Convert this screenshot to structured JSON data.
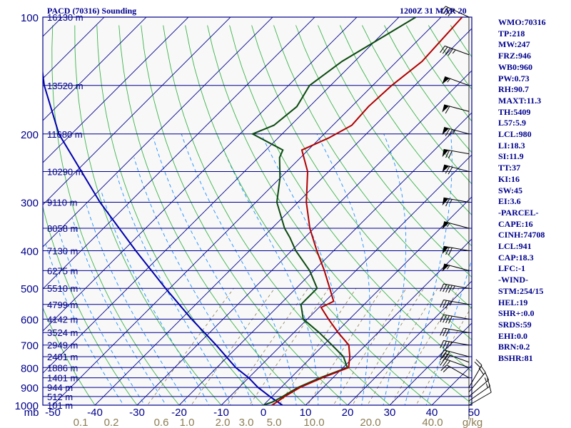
{
  "header": {
    "station": "PACD (70316) Sounding",
    "valid_time": "1200Z 31 MAR 20"
  },
  "stats": [
    "WMO:70316",
    "TP:218",
    "MW:247",
    "FRZ:946",
    "WB0:960",
    "PW:0.73",
    "RH:90.7",
    "MAXT:11.3",
    "TH:5409",
    "L57:5.9",
    "LCL:980",
    "LI:18.3",
    "SI:11.9",
    "TT:37",
    "KI:16",
    "SW:45",
    "EI:3.6",
    "-PARCEL-",
    "CAPE:16",
    "CINH:74708",
    "LCL:941",
    "CAP:18.3",
    "LFC:-1",
    "-WIND-",
    "STM:254/15",
    "HEL:19",
    "SHR+:0.0",
    "SRDS:59",
    "EHI:0.0",
    "BRN:0.2",
    "BSHR:81"
  ],
  "colors": {
    "background": "#f8f8f8",
    "isobar": "#00008b",
    "isotherm": "#00008b",
    "dry_adiabat": "#3cb44b",
    "moist_adiabat": "#1e90ff",
    "mixing_ratio": "#8b7d55",
    "temperature": "#b00000",
    "dewpoint": "#0b4a10",
    "parcel": "#0000b0",
    "wind_barbs": "#000000",
    "label_text": "#00008b",
    "mixing_label": "#8b7d55"
  },
  "chart_data": {
    "type": "skew-t log-p sounding",
    "pressure_axis_unit": "mb",
    "temperature_axis_unit": "°C",
    "mixing_ratio_unit": "g/kg",
    "pressure_range": [
      1000,
      100
    ],
    "temperature_range": [
      -50,
      50
    ],
    "pressure_labels": [
      100,
      200,
      300,
      400,
      500,
      600,
      700,
      800,
      900,
      1000
    ],
    "height_labels": [
      {
        "p": 100,
        "label": "16130 m"
      },
      {
        "p": 150,
        "label": "13520 m"
      },
      {
        "p": 200,
        "label": "11680 m"
      },
      {
        "p": 250,
        "label": "10290 m"
      },
      {
        "p": 300,
        "label": "9110 m"
      },
      {
        "p": 350,
        "label": "8058 m"
      },
      {
        "p": 400,
        "label": "7130 m"
      },
      {
        "p": 450,
        "label": "6275 m"
      },
      {
        "p": 500,
        "label": "5510 m"
      },
      {
        "p": 550,
        "label": "4799 m"
      },
      {
        "p": 600,
        "label": "4142 m"
      },
      {
        "p": 650,
        "label": "3524 m"
      },
      {
        "p": 700,
        "label": "2949 m"
      },
      {
        "p": 750,
        "label": "2401 m"
      },
      {
        "p": 800,
        "label": "1886 m"
      },
      {
        "p": 850,
        "label": "1401 m"
      },
      {
        "p": 900,
        "label": "944 m"
      },
      {
        "p": 950,
        "label": "512 m"
      },
      {
        "p": 1000,
        "label": "101 m"
      }
    ],
    "temperature_ticks": [
      "-50",
      "-40",
      "-30",
      "-20",
      "-10",
      "0",
      "10",
      "20",
      "30",
      "40",
      "50"
    ],
    "mixing_ratio_ticks": [
      "0.1",
      "0.2",
      "0.6",
      "1.0",
      "2.0",
      "3.0",
      "5.0",
      "10.0",
      "20.0",
      "40.0"
    ],
    "x_axis_left_label": "mb",
    "x_axis_right_label": "g/kg",
    "temperature_profile": [
      {
        "p": 1000,
        "t": 2.0
      },
      {
        "p": 980,
        "t": 2.5
      },
      {
        "p": 950,
        "t": 3.0
      },
      {
        "p": 900,
        "t": 4.5
      },
      {
        "p": 850,
        "t": 7.5
      },
      {
        "p": 800,
        "t": 11.3
      },
      {
        "p": 750,
        "t": 9.0
      },
      {
        "p": 700,
        "t": 6.0
      },
      {
        "p": 650,
        "t": 0.5
      },
      {
        "p": 600,
        "t": -5.0
      },
      {
        "p": 560,
        "t": -9.5
      },
      {
        "p": 540,
        "t": -8.0
      },
      {
        "p": 500,
        "t": -12.0
      },
      {
        "p": 450,
        "t": -17.5
      },
      {
        "p": 400,
        "t": -24.0
      },
      {
        "p": 350,
        "t": -31.0
      },
      {
        "p": 300,
        "t": -38.0
      },
      {
        "p": 250,
        "t": -45.0
      },
      {
        "p": 220,
        "t": -51.5
      },
      {
        "p": 205,
        "t": -48.0
      },
      {
        "p": 190,
        "t": -45.5
      },
      {
        "p": 170,
        "t": -46.0
      },
      {
        "p": 150,
        "t": -45.5
      },
      {
        "p": 130,
        "t": -44.0
      },
      {
        "p": 100,
        "t": -45.0
      }
    ],
    "dewpoint_profile": [
      {
        "p": 1000,
        "td": 0.0
      },
      {
        "p": 980,
        "td": 1.5
      },
      {
        "p": 950,
        "td": 2.5
      },
      {
        "p": 900,
        "td": 4.0
      },
      {
        "p": 850,
        "td": 7.0
      },
      {
        "p": 800,
        "td": 11.0
      },
      {
        "p": 750,
        "td": 7.5
      },
      {
        "p": 700,
        "td": 2.0
      },
      {
        "p": 650,
        "td": -4.0
      },
      {
        "p": 600,
        "td": -11.0
      },
      {
        "p": 550,
        "td": -15.0
      },
      {
        "p": 500,
        "td": -15.0
      },
      {
        "p": 450,
        "td": -21.0
      },
      {
        "p": 400,
        "td": -29.0
      },
      {
        "p": 370,
        "td": -33.5
      },
      {
        "p": 350,
        "td": -37.0
      },
      {
        "p": 300,
        "td": -45.0
      },
      {
        "p": 260,
        "td": -50.0
      },
      {
        "p": 230,
        "td": -55.0
      },
      {
        "p": 220,
        "td": -56.0
      },
      {
        "p": 200,
        "td": -67.0
      },
      {
        "p": 190,
        "td": -64.0
      },
      {
        "p": 170,
        "td": -63.0
      },
      {
        "p": 150,
        "td": -65.0
      },
      {
        "p": 130,
        "td": -63.0
      },
      {
        "p": 100,
        "td": -56.0
      }
    ],
    "parcel_profile": [
      {
        "p": 1000,
        "t": 4.5
      },
      {
        "p": 950,
        "t": -0.5
      },
      {
        "p": 900,
        "t": -5.5
      },
      {
        "p": 850,
        "t": -10.0
      },
      {
        "p": 800,
        "t": -15.5
      },
      {
        "p": 700,
        "t": -25.5
      },
      {
        "p": 600,
        "t": -37.5
      },
      {
        "p": 500,
        "t": -51.0
      },
      {
        "p": 400,
        "t": -67.0
      },
      {
        "p": 300,
        "t": -87.0
      },
      {
        "p": 200,
        "t": -113.0
      },
      {
        "p": 150,
        "t": -128.0
      },
      {
        "p": 115,
        "t": -140.0
      }
    ],
    "wind_barbs": [
      {
        "p": 1000,
        "dir": 60,
        "spd": 10
      },
      {
        "p": 975,
        "dir": 55,
        "spd": 15
      },
      {
        "p": 950,
        "dir": 50,
        "spd": 15
      },
      {
        "p": 925,
        "dir": 40,
        "spd": 20
      },
      {
        "p": 900,
        "dir": 30,
        "spd": 20
      },
      {
        "p": 850,
        "dir": 300,
        "spd": 20
      },
      {
        "p": 800,
        "dir": 290,
        "spd": 25
      },
      {
        "p": 775,
        "dir": 290,
        "spd": 25
      },
      {
        "p": 750,
        "dir": 285,
        "spd": 30
      },
      {
        "p": 700,
        "dir": 280,
        "spd": 35
      },
      {
        "p": 650,
        "dir": 280,
        "spd": 30
      },
      {
        "p": 600,
        "dir": 280,
        "spd": 40
      },
      {
        "p": 550,
        "dir": 280,
        "spd": 35
      },
      {
        "p": 500,
        "dir": 280,
        "spd": 45
      },
      {
        "p": 450,
        "dir": 285,
        "spd": 55
      },
      {
        "p": 400,
        "dir": 280,
        "spd": 70
      },
      {
        "p": 350,
        "dir": 285,
        "spd": 55
      },
      {
        "p": 300,
        "dir": 280,
        "spd": 65
      },
      {
        "p": 250,
        "dir": 285,
        "spd": 70
      },
      {
        "p": 225,
        "dir": 280,
        "spd": 70
      },
      {
        "p": 200,
        "dir": 285,
        "spd": 75
      },
      {
        "p": 175,
        "dir": 285,
        "spd": 60
      },
      {
        "p": 150,
        "dir": 290,
        "spd": 55
      },
      {
        "p": 125,
        "dir": 290,
        "spd": 45
      },
      {
        "p": 100,
        "dir": 295,
        "spd": 40
      }
    ]
  }
}
